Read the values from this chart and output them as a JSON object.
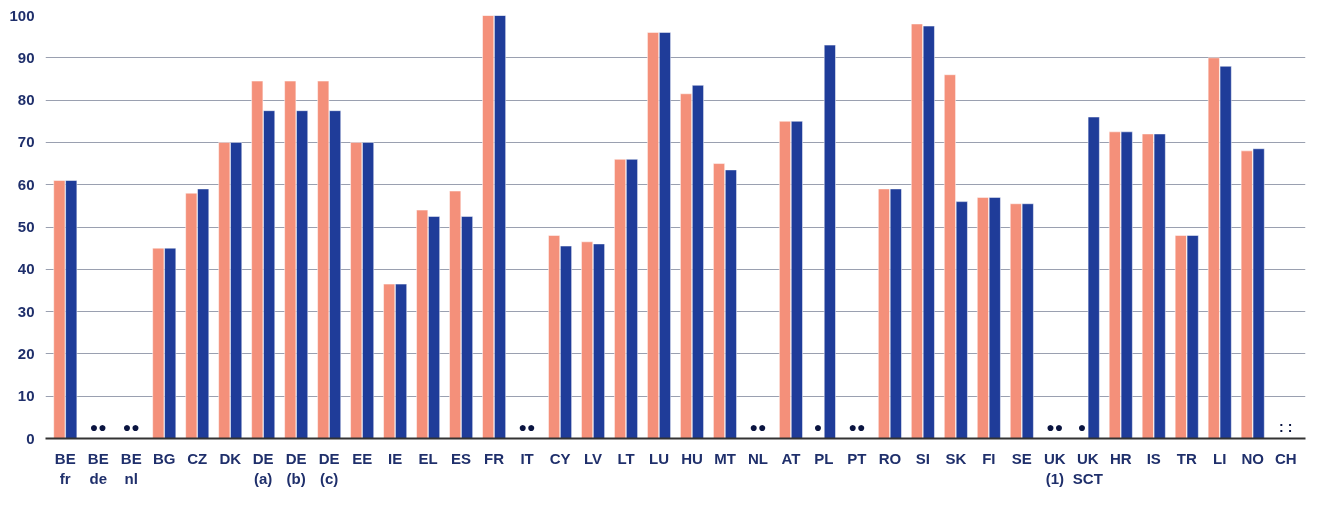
{
  "chart_data": {
    "type": "bar",
    "categories": [
      "BE\nfr",
      "BE\nde",
      "BE\nnl",
      "BG",
      "CZ",
      "DK",
      "DE\n(a)",
      "DE\n(b)",
      "DE\n(c)",
      "EE",
      "IE",
      "EL",
      "ES",
      "FR",
      "IT",
      "CY",
      "LV",
      "LT",
      "LU",
      "HU",
      "MT",
      "NL",
      "AT",
      "PL",
      "PT",
      "RO",
      "SI",
      "SK",
      "FI",
      "SE",
      "UK\n(1)",
      "UK\nSCT",
      "HR",
      "IS",
      "TR",
      "LI",
      "NO",
      "CH"
    ],
    "series": [
      {
        "color": "#f4907a",
        "values": [
          61,
          null,
          null,
          45,
          58,
          70,
          84.5,
          84.5,
          84.5,
          70,
          36.5,
          54,
          58.5,
          100,
          null,
          48,
          46.5,
          66,
          96,
          81.5,
          65,
          null,
          75,
          null,
          null,
          59,
          98,
          86,
          57,
          55.5,
          null,
          null,
          72.5,
          72,
          48,
          90,
          68,
          null
        ]
      },
      {
        "color": "#1f3c99",
        "values": [
          61,
          null,
          null,
          45,
          59,
          70,
          77.5,
          77.5,
          77.5,
          70,
          36.5,
          52.5,
          52.5,
          100,
          null,
          45.5,
          46,
          66,
          96,
          83.5,
          63.5,
          null,
          75,
          93,
          null,
          59,
          97.5,
          56,
          57,
          55.5,
          null,
          76,
          72.5,
          72,
          48,
          88,
          68.5,
          null
        ]
      }
    ],
    "annotations": [
      "●●",
      "●●",
      "●●",
      "●●",
      "●",
      "●●",
      "●●",
      "●",
      ": :"
    ],
    "ylim": [
      0,
      100
    ],
    "yticks": [
      0,
      10,
      20,
      30,
      40,
      50,
      60,
      70,
      80,
      90,
      100
    ],
    "grid": "y"
  }
}
